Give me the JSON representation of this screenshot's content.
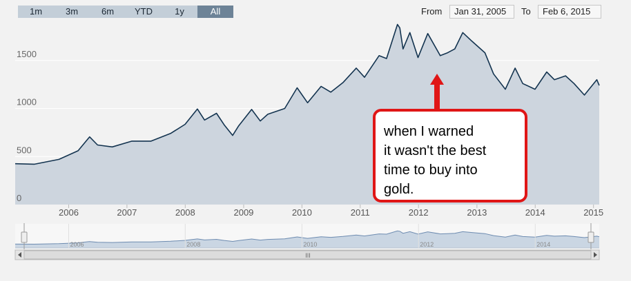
{
  "range_selector": {
    "buttons": [
      {
        "label": "1m",
        "active": false
      },
      {
        "label": "3m",
        "active": false
      },
      {
        "label": "6m",
        "active": false
      },
      {
        "label": "YTD",
        "active": false
      },
      {
        "label": "1y",
        "active": false
      },
      {
        "label": "All",
        "active": true
      }
    ]
  },
  "date_range": {
    "from_label": "From",
    "from_value": "Jan 31, 2005",
    "to_label": "To",
    "to_value": "Feb 6, 2015"
  },
  "annotation": {
    "lines": [
      "when I warned",
      "it wasn't the best",
      "time to buy into",
      "gold."
    ]
  },
  "navigator": {
    "year_labels": [
      "2006",
      "2008",
      "2010",
      "2012",
      "2014"
    ],
    "scrollbar_grip": "III"
  },
  "colors": {
    "line": "#13334f",
    "area": "#cdd5de",
    "nav_line": "#6d8bb0",
    "nav_area": "#cad6e3",
    "callout_border": "#e01616",
    "active_button": "#6d8397",
    "button": "#c3ced8"
  },
  "chart_data": {
    "type": "area",
    "title": "",
    "xlabel": "",
    "ylabel": "",
    "x_tick_labels": [
      "2006",
      "2007",
      "2008",
      "2009",
      "2010",
      "2011",
      "2012",
      "2013",
      "2014",
      "2015"
    ],
    "y_tick_labels": [
      "0",
      "500",
      "1000",
      "1500"
    ],
    "ylim": [
      0,
      1900
    ],
    "xlim": [
      "2005-01-31",
      "2015-02-06"
    ],
    "grid": true,
    "series": [
      {
        "x": [
          "2005-01-31",
          "2005-06-01",
          "2005-11-01",
          "2006-03-01",
          "2006-05-12",
          "2006-07-01",
          "2006-10-01",
          "2007-02-01",
          "2007-06-01",
          "2007-10-01",
          "2007-12-31",
          "2008-03-17",
          "2008-05-01",
          "2008-07-15",
          "2008-09-01",
          "2008-10-24",
          "2008-12-01",
          "2009-02-20",
          "2009-04-15",
          "2009-06-01",
          "2009-09-15",
          "2009-12-02",
          "2010-02-05",
          "2010-05-01",
          "2010-07-01",
          "2010-09-15",
          "2010-12-07",
          "2011-01-28",
          "2011-04-29",
          "2011-06-15",
          "2011-08-22",
          "2011-09-06",
          "2011-09-26",
          "2011-11-08",
          "2011-12-29",
          "2012-02-28",
          "2012-05-16",
          "2012-07-01",
          "2012-08-15",
          "2012-10-04",
          "2012-12-01",
          "2013-02-20",
          "2013-04-15",
          "2013-06-28",
          "2013-08-28",
          "2013-10-15",
          "2013-12-31",
          "2014-03-14",
          "2014-05-01",
          "2014-07-10",
          "2014-09-01",
          "2014-11-05",
          "2015-01-22",
          "2015-02-06"
        ],
        "y": [
          425,
          420,
          470,
          560,
          705,
          620,
          600,
          660,
          660,
          740,
          835,
          995,
          880,
          950,
          830,
          720,
          820,
          990,
          870,
          940,
          1000,
          1215,
          1060,
          1230,
          1170,
          1270,
          1420,
          1325,
          1550,
          1520,
          1875,
          1840,
          1620,
          1790,
          1530,
          1780,
          1550,
          1580,
          1620,
          1790,
          1700,
          1580,
          1360,
          1200,
          1420,
          1260,
          1200,
          1380,
          1300,
          1340,
          1260,
          1140,
          1300,
          1240
        ]
      }
    ]
  }
}
